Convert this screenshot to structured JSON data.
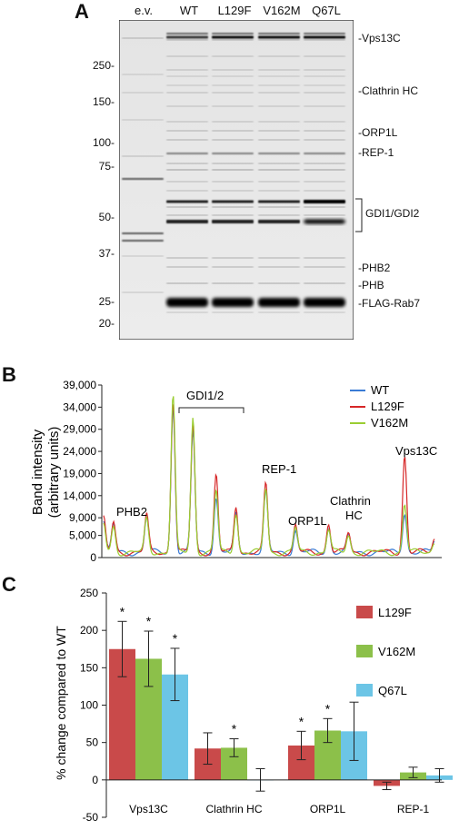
{
  "panel_a": {
    "letter": "A",
    "lanes": [
      "e.v.",
      "WT",
      "L129F",
      "V162M",
      "Q67L"
    ],
    "mw_markers": [
      "250-",
      "150-",
      "100-",
      "75-",
      "50-",
      "37-",
      "25-",
      "20-"
    ],
    "band_labels": [
      "-Vps13C",
      "-Clathrin HC",
      "-ORP1L",
      "-REP-1",
      "GDI1/GDI2",
      "-PHB2",
      "-PHB",
      "-FLAG-Rab7"
    ]
  },
  "chart_data": [
    {
      "type": "line",
      "panel": "B",
      "ylabel": "Band intensity (arbitrary units)",
      "ylabel_lines": [
        "Band intensity",
        "(arbitrary units)"
      ],
      "yticks": [
        "39,000",
        "34,000",
        "29,000",
        "24,000",
        "19,000",
        "14,000",
        "9,000",
        "5,000",
        "0"
      ],
      "ylim": [
        0,
        39000
      ],
      "legend_position": "top-right",
      "series": [
        {
          "name": "WT",
          "color": "#3a7bd5"
        },
        {
          "name": "L129F",
          "color": "#d62728"
        },
        {
          "name": "V162M",
          "color": "#9acd32"
        }
      ],
      "peaks": [
        {
          "pos": 0.0,
          "values": [
            7000,
            7600,
            6400
          ]
        },
        {
          "pos": 0.03,
          "values": [
            6200,
            6800,
            5800
          ]
        },
        {
          "pos": 0.13,
          "values": [
            8000,
            8400,
            7500
          ]
        },
        {
          "pos": 0.21,
          "values": [
            33000,
            34500,
            35500
          ]
        },
        {
          "pos": 0.27,
          "values": [
            27500,
            29000,
            30500
          ]
        },
        {
          "pos": 0.34,
          "values": [
            12500,
            17500,
            14000
          ]
        },
        {
          "pos": 0.4,
          "values": [
            8500,
            10500,
            9000
          ]
        },
        {
          "pos": 0.49,
          "values": [
            13500,
            15500,
            14500
          ]
        },
        {
          "pos": 0.58,
          "values": [
            5000,
            6000,
            5500
          ]
        },
        {
          "pos": 0.68,
          "values": [
            5500,
            6500,
            5200
          ]
        },
        {
          "pos": 0.74,
          "values": [
            3500,
            4500,
            3800
          ]
        },
        {
          "pos": 0.91,
          "values": [
            9000,
            22000,
            11000
          ]
        },
        {
          "pos": 1.0,
          "values": [
            2500,
            3000,
            2400
          ]
        }
      ],
      "annotations": [
        "PHB2",
        "GDI1/2",
        "REP-1",
        "ORP1L",
        "Clathrin HC",
        "Vps13C"
      ],
      "annotation_lines": {
        "clathrin": [
          "Clathrin",
          "HC"
        ]
      }
    },
    {
      "type": "bar",
      "panel": "C",
      "categories": [
        "Vps13C",
        "Clathrin HC",
        "ORP1L",
        "REP-1"
      ],
      "ylabel": "% change compared to WT",
      "ylim": [
        -50,
        250
      ],
      "yticks": [
        "250",
        "200",
        "150",
        "100",
        "50",
        "0",
        "-50"
      ],
      "legend_position": "right",
      "series": [
        {
          "name": "L129F",
          "color": "#c94a4a",
          "values": [
            175,
            42,
            46,
            -8
          ],
          "errors": [
            37,
            21,
            19,
            5
          ],
          "significant": [
            true,
            false,
            true,
            false
          ]
        },
        {
          "name": "V162M",
          "color": "#8cc04a",
          "values": [
            162,
            43,
            66,
            10
          ],
          "errors": [
            37,
            12,
            16,
            7
          ],
          "significant": [
            true,
            true,
            true,
            false
          ]
        },
        {
          "name": "Q67L",
          "color": "#6cc5e6",
          "values": [
            141,
            0,
            65,
            6
          ],
          "errors": [
            35,
            15,
            39,
            9
          ],
          "significant": [
            true,
            false,
            false,
            false
          ]
        }
      ],
      "star": "*"
    }
  ],
  "panel_letters": {
    "b": "B",
    "c": "C"
  }
}
